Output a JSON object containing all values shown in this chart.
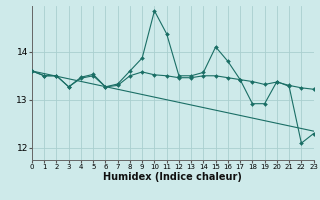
{
  "xlabel": "Humidex (Indice chaleur)",
  "bg_color": "#ceeaea",
  "grid_color": "#aacfcf",
  "line_color": "#1a6e65",
  "xlim": [
    0,
    23
  ],
  "ylim": [
    11.75,
    14.95
  ],
  "yticks": [
    12,
    13,
    14
  ],
  "xticks": [
    0,
    1,
    2,
    3,
    4,
    5,
    6,
    7,
    8,
    9,
    10,
    11,
    12,
    13,
    14,
    15,
    16,
    17,
    18,
    19,
    20,
    21,
    22,
    23
  ],
  "series1_x": [
    0,
    1,
    2,
    3,
    4,
    5,
    6,
    7,
    8,
    9,
    10,
    11,
    12,
    13,
    14,
    15,
    16,
    17,
    18,
    19,
    20,
    21,
    22,
    23
  ],
  "series1_y": [
    13.6,
    13.5,
    13.5,
    13.27,
    13.47,
    13.53,
    13.27,
    13.33,
    13.6,
    13.87,
    14.85,
    14.37,
    13.5,
    13.5,
    13.57,
    14.1,
    13.8,
    13.42,
    12.92,
    12.92,
    13.38,
    13.28,
    12.1,
    12.3
  ],
  "series2_x": [
    0,
    1,
    2,
    3,
    4,
    5,
    6,
    7,
    8,
    9,
    10,
    11,
    12,
    13,
    14,
    15,
    16,
    17,
    18,
    19,
    20,
    21,
    22,
    23
  ],
  "series2_y": [
    13.6,
    13.5,
    13.5,
    13.27,
    13.45,
    13.5,
    13.27,
    13.3,
    13.5,
    13.58,
    13.52,
    13.5,
    13.46,
    13.46,
    13.5,
    13.5,
    13.46,
    13.42,
    13.38,
    13.32,
    13.37,
    13.3,
    13.25,
    13.22
  ],
  "series3_x": [
    0,
    23
  ],
  "series3_y": [
    13.6,
    12.35
  ]
}
